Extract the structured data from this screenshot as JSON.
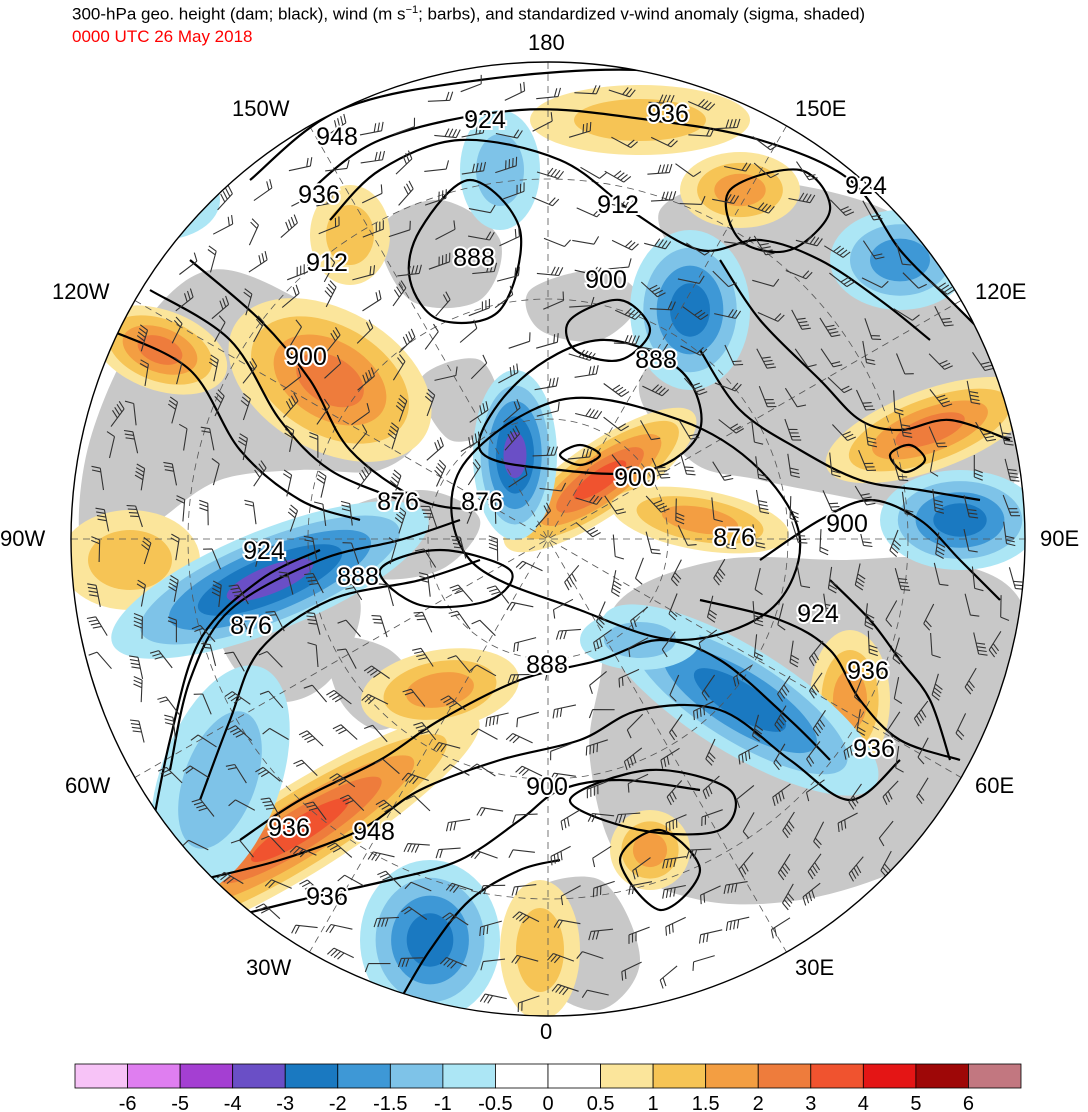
{
  "header": {
    "title_main": "300-hPa geo. height (dam; black), wind (m s",
    "title_exp": "−1",
    "title_rest": "; barbs), and standardized v-wind anomaly (sigma, shaded)",
    "time": "0000 UTC 26 May 2018"
  },
  "map": {
    "longitude_labels": {
      "top": "180",
      "bottom": "0",
      "left": "90W",
      "right": "90E",
      "upper_left_1": "150W",
      "upper_left_2": "120W",
      "upper_right_1": "150E",
      "upper_right_2": "120E",
      "lower_left_1": "60W",
      "lower_left_2": "30W",
      "lower_right_1": "60E",
      "lower_right_2": "30E"
    },
    "contour_labels": [
      "948",
      "936",
      "924",
      "936",
      "912",
      "888",
      "912",
      "900",
      "924",
      "900",
      "888",
      "876",
      "924",
      "876",
      "888",
      "900",
      "876",
      "900",
      "876",
      "888",
      "924",
      "936",
      "936",
      "900",
      "936",
      "948",
      "936"
    ],
    "colors": {
      "land": "#c8c8c8",
      "ocean": "#ffffff",
      "contour": "#000000"
    }
  },
  "colorbar": {
    "ticks": [
      "-6",
      "-5",
      "-4",
      "-3",
      "-2",
      "-1.5",
      "-1",
      "-0.5",
      "0",
      "0.5",
      "1",
      "1.5",
      "2",
      "3",
      "4",
      "5",
      "6"
    ],
    "colors": [
      "#f7c3f7",
      "#df7ef0",
      "#a43fd2",
      "#6a4fc6",
      "#1a79c1",
      "#3e98d6",
      "#7ec3e8",
      "#ace6f5",
      "#ffffff",
      "#ffffff",
      "#fbe59b",
      "#f6c455",
      "#f39e42",
      "#ee7c3c",
      "#f0532f",
      "#e41515",
      "#9e0707",
      "#c27780"
    ]
  }
}
